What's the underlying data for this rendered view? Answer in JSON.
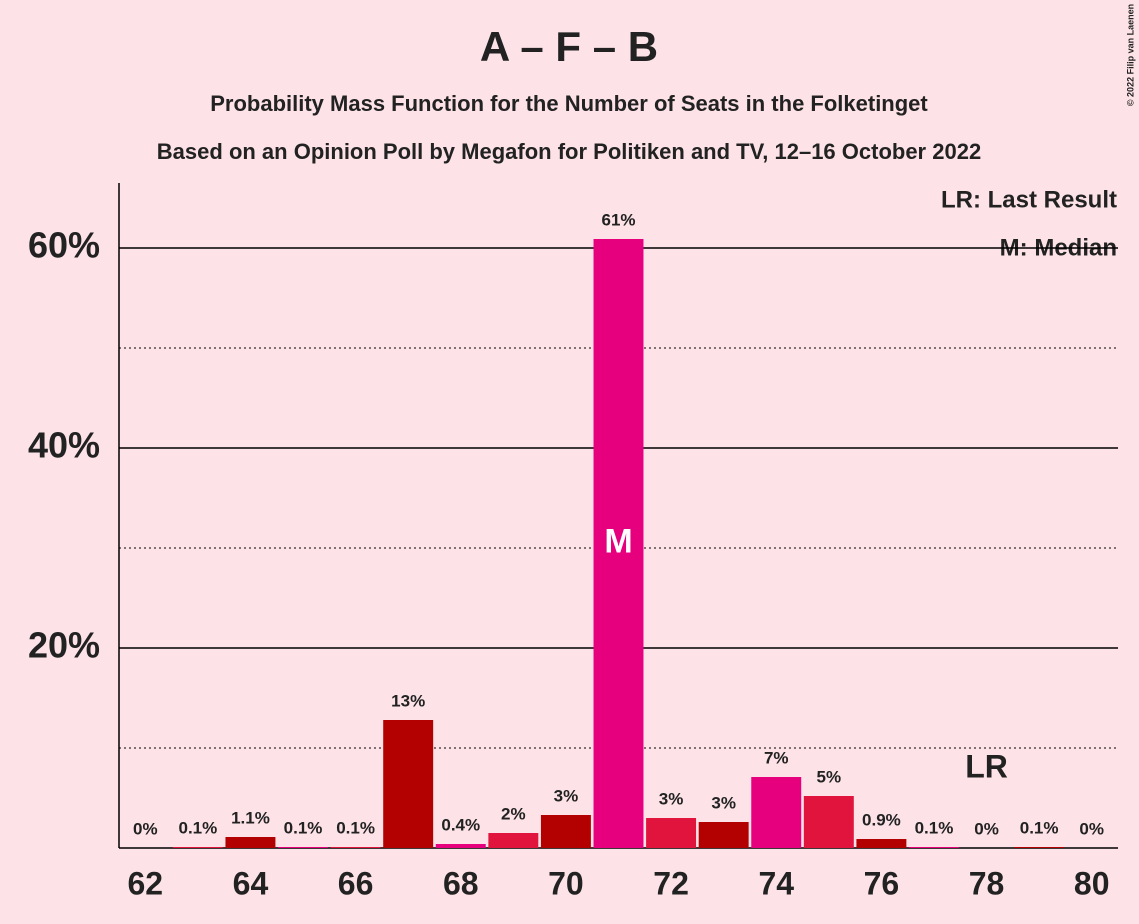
{
  "chart_data": {
    "type": "bar",
    "title": "A – F – B",
    "subtitle": "Probability Mass Function for the Number of Seats in the Folketinget",
    "subtitle2": "Based on an Opinion Poll by Megafon for Politiken and TV, 12–16 October 2022",
    "copyright": "© 2022 Filip van Laenen",
    "legend": [
      "LR: Last Result",
      "M: Median"
    ],
    "x": [
      62,
      63,
      64,
      65,
      66,
      67,
      68,
      69,
      70,
      71,
      72,
      73,
      74,
      75,
      76,
      77,
      78,
      79,
      80
    ],
    "values": [
      0,
      0.1,
      1.1,
      0.1,
      0.1,
      12.8,
      0.4,
      1.5,
      3.3,
      60.9,
      3.0,
      2.6,
      7.1,
      5.2,
      0.9,
      0.1,
      0,
      0.1,
      0
    ],
    "value_labels": [
      "0%",
      "0.1%",
      "1.1%",
      "0.1%",
      "0.1%",
      "13%",
      "0.4%",
      "2%",
      "3%",
      "61%",
      "3%",
      "3%",
      "7%",
      "5%",
      "0.9%",
      "0.1%",
      "0%",
      "0.1%",
      "0%"
    ],
    "colors": [
      "#b30000",
      "#e6007e",
      "#e0143c"
    ],
    "xlim": [
      61.5,
      80.5
    ],
    "xticks": [
      62,
      64,
      66,
      68,
      70,
      72,
      74,
      76,
      78,
      80
    ],
    "ylim": [
      0,
      66.5
    ],
    "yticks": [
      {
        "value": 20,
        "label": "20%"
      },
      {
        "value": 40,
        "label": "40%"
      },
      {
        "value": 60,
        "label": "60%"
      }
    ],
    "minor_yticks": [
      10,
      30,
      50
    ],
    "median": 71,
    "median_label": "M",
    "last_result": 78,
    "last_result_label": "LR"
  }
}
